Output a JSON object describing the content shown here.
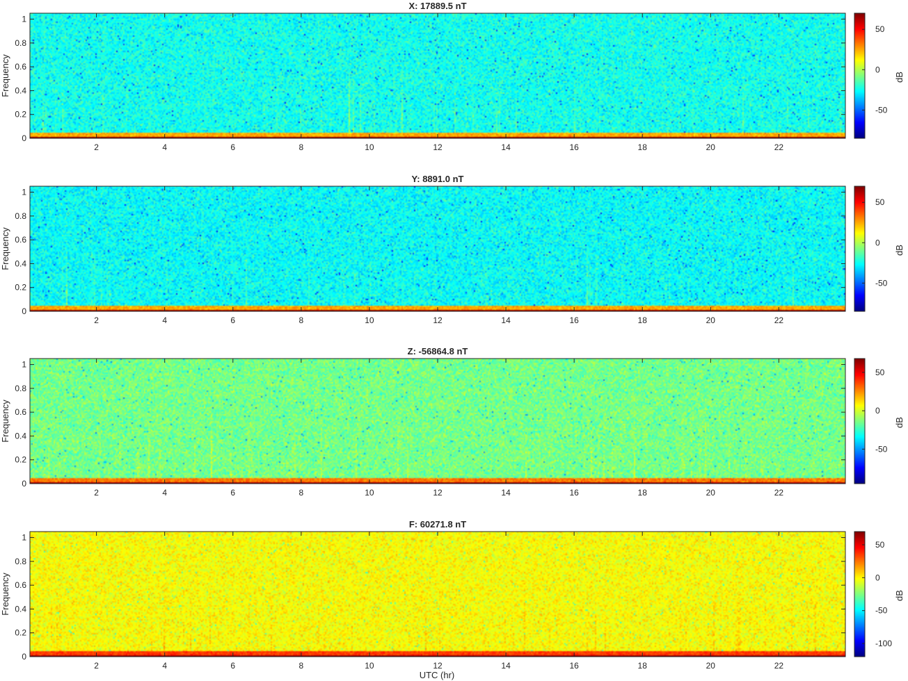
{
  "figure": {
    "xlabel": "UTC (hr)",
    "ylabel": "Frequency",
    "colorbar_label": "dB",
    "colormap": "jet"
  },
  "chart_data": [
    {
      "type": "heatmap",
      "title": "X: 17889.5 nT",
      "xlabel": "",
      "ylabel": "Frequency",
      "xlim": [
        0.05,
        23.95
      ],
      "ylim": [
        0,
        1.05
      ],
      "xticks": [
        2,
        4,
        6,
        8,
        10,
        12,
        14,
        16,
        18,
        20,
        22
      ],
      "yticks": [
        0,
        0.2,
        0.4,
        0.6,
        0.8,
        1
      ],
      "clim": [
        -85,
        70
      ],
      "cticks": [
        -50,
        0,
        50
      ],
      "colorbar_label": "dB",
      "background_db": -24,
      "low_freq_band_db": 25,
      "dc_band_db": 68
    },
    {
      "type": "heatmap",
      "title": "Y: 8891.0 nT",
      "xlabel": "",
      "ylabel": "Frequency",
      "xlim": [
        0.05,
        23.95
      ],
      "ylim": [
        0,
        1.05
      ],
      "xticks": [
        2,
        4,
        6,
        8,
        10,
        12,
        14,
        16,
        18,
        20,
        22
      ],
      "yticks": [
        0,
        0.2,
        0.4,
        0.6,
        0.8,
        1
      ],
      "clim": [
        -85,
        70
      ],
      "cticks": [
        -50,
        0,
        50
      ],
      "colorbar_label": "dB",
      "background_db": -26,
      "low_freq_band_db": 25,
      "dc_band_db": 66
    },
    {
      "type": "heatmap",
      "title": "Z: -56864.8 nT",
      "xlabel": "",
      "ylabel": "Frequency",
      "xlim": [
        0.05,
        23.95
      ],
      "ylim": [
        0,
        1.05
      ],
      "xticks": [
        2,
        4,
        6,
        8,
        10,
        12,
        14,
        16,
        18,
        20,
        22
      ],
      "yticks": [
        0,
        0.2,
        0.4,
        0.6,
        0.8,
        1
      ],
      "clim": [
        -95,
        68
      ],
      "cticks": [
        -50,
        0,
        50
      ],
      "colorbar_label": "dB",
      "background_db": -15,
      "low_freq_band_db": 28,
      "dc_band_db": 63
    },
    {
      "type": "heatmap",
      "title": "F: 60271.8 nT",
      "xlabel": "UTC (hr)",
      "ylabel": "Frequency",
      "xlim": [
        0.05,
        23.95
      ],
      "ylim": [
        0,
        1.05
      ],
      "xticks": [
        2,
        4,
        6,
        8,
        10,
        12,
        14,
        16,
        18,
        20,
        22
      ],
      "yticks": [
        0,
        0.2,
        0.4,
        0.6,
        0.8,
        1
      ],
      "clim": [
        -120,
        70
      ],
      "cticks": [
        -100,
        -50,
        0,
        50
      ],
      "colorbar_label": "dB",
      "background_db": -2,
      "low_freq_band_db": 35,
      "dc_band_db": 66
    }
  ]
}
